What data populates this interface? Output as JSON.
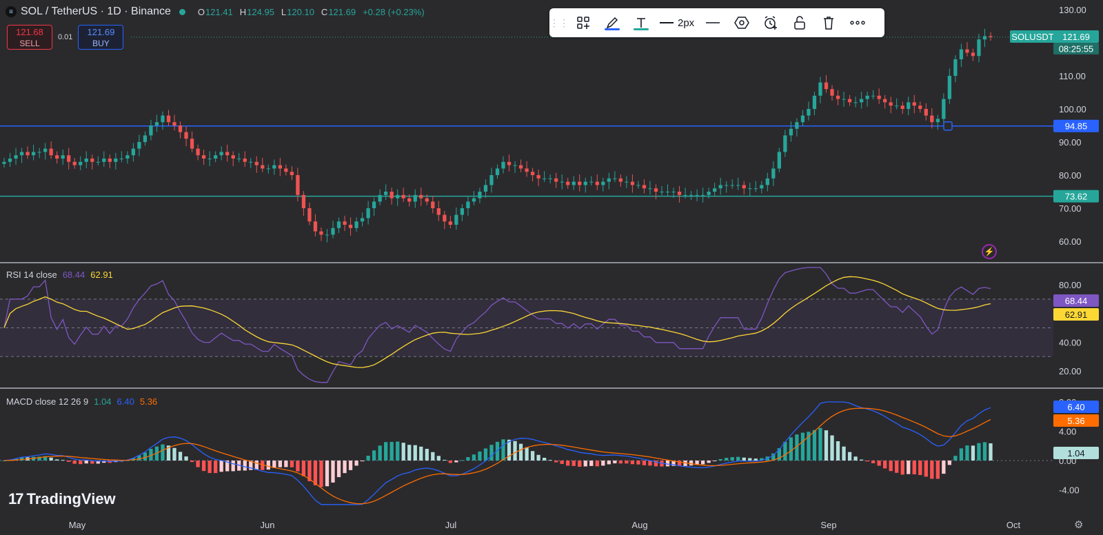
{
  "header": {
    "title": "SOL / TetherUS · 1D · Binance",
    "open_key": "O",
    "open": "121.41",
    "high_key": "H",
    "high": "124.95",
    "low_key": "L",
    "low": "120.10",
    "close_key": "C",
    "close": "121.69",
    "change": "+0.28 (+0.23%)"
  },
  "trade": {
    "sell_price": "121.68",
    "sell_label": "SELL",
    "spread": "0.01",
    "buy_price": "121.69",
    "buy_label": "BUY"
  },
  "toolbar": {
    "items": [
      "layout-add-icon",
      "pencil-icon",
      "text-icon",
      "line-width",
      "line-style-icon",
      "hexagon-icon",
      "alarm-add-icon",
      "unlock-icon",
      "trash-icon",
      "more-icon"
    ],
    "line_width_label": "2px",
    "pencil_color": "#2962ff",
    "text_color": "#26a69a"
  },
  "colors": {
    "up": "#26a69a",
    "down": "#ef5350",
    "rsi": "#7e57c2",
    "rsi_ma": "#fdd835",
    "macd": "#2962ff",
    "signal": "#ff6d00",
    "line_support": "#26a69a",
    "line_resist": "#2962ff"
  },
  "price_axis": {
    "ticks": [
      "130.00",
      "110.00",
      "100.00",
      "90.00",
      "80.00",
      "70.00",
      "60.00"
    ],
    "symbol_label": "SOLUSDT",
    "last_price": "121.69",
    "countdown": "08:25:55",
    "hline_upper": "94.85",
    "hline_lower": "73.62"
  },
  "rsi_pane": {
    "label": "RSI 14 close",
    "rsi_value": "68.44",
    "ma_value": "62.91",
    "ticks": [
      "80.00",
      "40.00",
      "20.00"
    ]
  },
  "macd_pane": {
    "label": "MACD close 12 26 9",
    "hist_value": "1.04",
    "macd_value": "6.40",
    "signal_value": "5.36",
    "ticks": [
      "8.00",
      "4.00",
      "0.00",
      "-4.00"
    ]
  },
  "time_axis": [
    "May",
    "Jun",
    "Jul",
    "Aug",
    "Sep",
    "Oct"
  ],
  "watermark": "TradingView",
  "chart_data": {
    "type": "candlestick",
    "title": "SOL / TetherUS · 1D · Binance",
    "ylim": [
      55,
      132
    ],
    "horizontal_lines": [
      94.85,
      73.62
    ],
    "closes": [
      84,
      85,
      86,
      87,
      86,
      87,
      87,
      88,
      86,
      85,
      86,
      84,
      83,
      84,
      85,
      84,
      84,
      85,
      84,
      85,
      85,
      86,
      88,
      90,
      92,
      95,
      96,
      98,
      96,
      95,
      93,
      91,
      88,
      86,
      85,
      85,
      86,
      87,
      86,
      85,
      85,
      84,
      84,
      83,
      82,
      82,
      83,
      82,
      81,
      80,
      74,
      70,
      66,
      63,
      62,
      62,
      64,
      66,
      65,
      64,
      66,
      67,
      70,
      72,
      74,
      75,
      73,
      74,
      73,
      72,
      74,
      73,
      72,
      70,
      68,
      66,
      65,
      68,
      70,
      72,
      73,
      75,
      77,
      80,
      82,
      84,
      83,
      83,
      82,
      81,
      80,
      79,
      79,
      79,
      78,
      78,
      77,
      78,
      77,
      78,
      78,
      77,
      78,
      79,
      79,
      78,
      78,
      77,
      77,
      76,
      76,
      75,
      75,
      75,
      75,
      74,
      74,
      74,
      74,
      74,
      75,
      76,
      77,
      77,
      77,
      77,
      76,
      76,
      76,
      77,
      79,
      82,
      87,
      92,
      94,
      96,
      98,
      100,
      104,
      108,
      106,
      104,
      103,
      103,
      102,
      102,
      103,
      104,
      104,
      103,
      102,
      101,
      101,
      100,
      102,
      101,
      100,
      98,
      96,
      97,
      103,
      110,
      115,
      118,
      117,
      116,
      121,
      122,
      121.69
    ]
  }
}
